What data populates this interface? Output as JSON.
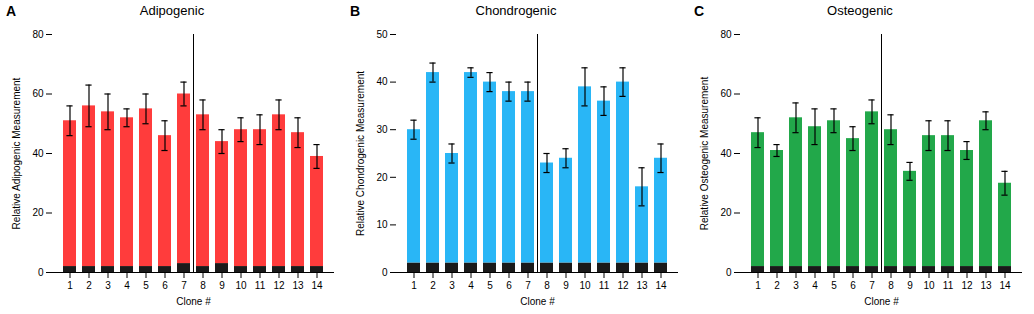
{
  "chart_data": [
    {
      "type": "bar",
      "title": "Adipogenic",
      "annotations": [
        "A"
      ],
      "xlabel": "Clone #",
      "ylabel": "Relative Adipogenic Measurement",
      "categories": [
        "1",
        "2",
        "3",
        "4",
        "5",
        "6",
        "7",
        "8",
        "9",
        "10",
        "11",
        "12",
        "13",
        "14"
      ],
      "stacked": true,
      "grid": false,
      "series": [
        {
          "color": "#1a1a1a",
          "values": [
            2,
            2,
            2,
            2,
            2,
            2,
            3,
            2,
            3,
            2,
            2,
            2,
            2,
            2
          ]
        },
        {
          "color": "#FF3C3C",
          "values": [
            49,
            54,
            52,
            50,
            53,
            44,
            57,
            51,
            41,
            46,
            46,
            51,
            45,
            37
          ],
          "errors": [
            5,
            7,
            6,
            3,
            5,
            5,
            4,
            5,
            4,
            4,
            5,
            5,
            5,
            4
          ]
        }
      ],
      "ylim": [
        0,
        80
      ],
      "yticks": [
        0,
        20,
        40,
        60,
        80
      ]
    },
    {
      "type": "bar",
      "title": "Chondrogenic",
      "annotations": [
        "B"
      ],
      "xlabel": "Clone #",
      "ylabel": "Relative Chondrogenic Measurement",
      "categories": [
        "1",
        "2",
        "3",
        "4",
        "5",
        "6",
        "7",
        "8",
        "9",
        "10",
        "11",
        "12",
        "13",
        "14"
      ],
      "stacked": true,
      "grid": false,
      "series": [
        {
          "color": "#1a1a1a",
          "values": [
            2,
            2,
            2,
            2,
            2,
            2,
            2,
            2,
            2,
            2,
            2,
            2,
            2,
            2
          ]
        },
        {
          "color": "#29B6F6",
          "values": [
            28,
            40,
            23,
            40,
            38,
            36,
            36,
            21,
            22,
            37,
            34,
            38,
            16,
            22
          ],
          "errors": [
            2,
            2,
            2,
            1,
            2,
            2,
            2,
            2,
            2,
            4,
            3,
            3,
            4,
            3
          ]
        }
      ],
      "ylim": [
        0,
        50
      ],
      "yticks": [
        0,
        10,
        20,
        30,
        40,
        50
      ]
    },
    {
      "type": "bar",
      "title": "Osteogenic",
      "annotations": [
        "C"
      ],
      "xlabel": "Clone #",
      "ylabel": "Relative Osteogenic Measurement",
      "categories": [
        "1",
        "2",
        "3",
        "4",
        "5",
        "6",
        "7",
        "8",
        "9",
        "10",
        "11",
        "12",
        "13",
        "14"
      ],
      "stacked": true,
      "grid": false,
      "series": [
        {
          "color": "#1a1a1a",
          "values": [
            2,
            2,
            2,
            2,
            2,
            2,
            2,
            2,
            2,
            2,
            2,
            2,
            2,
            2
          ]
        },
        {
          "color": "#22A84A",
          "values": [
            45,
            39,
            50,
            47,
            49,
            43,
            52,
            46,
            32,
            44,
            44,
            39,
            49,
            28
          ],
          "errors": [
            5,
            2,
            5,
            6,
            4,
            4,
            4,
            5,
            3,
            5,
            5,
            3,
            3,
            4
          ]
        }
      ],
      "ylim": [
        0,
        80
      ],
      "yticks": [
        0,
        20,
        40,
        60,
        80
      ]
    }
  ]
}
